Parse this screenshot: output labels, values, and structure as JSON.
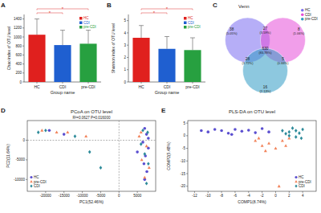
{
  "chart_data": [
    {
      "type": "bar",
      "label": "A",
      "categories": [
        "HC",
        "CDI",
        "pre-CDI"
      ],
      "values": [
        1050,
        820,
        850
      ],
      "errors": [
        350,
        330,
        300
      ],
      "colors": [
        "#e0201e",
        "#1f5fd0",
        "#27a040"
      ],
      "ylim": [
        0,
        1500
      ],
      "yticks": [
        0,
        200,
        400,
        600,
        800,
        1000,
        1200,
        1400
      ],
      "x_label": "Group name",
      "y_label": "Chao index of OTU level",
      "legend": "upper right",
      "comparisons": [
        {
          "groups": [
            "HC",
            "CDI"
          ],
          "label": "*"
        },
        {
          "groups": [
            "HC",
            "pre-CDI"
          ],
          "label": "*"
        }
      ]
    },
    {
      "type": "bar",
      "label": "B",
      "categories": [
        "HC",
        "CDI",
        "pre-CDI"
      ],
      "values": [
        3.6,
        2.7,
        2.6
      ],
      "errors": [
        1.0,
        1.0,
        1.0
      ],
      "colors": [
        "#e0201e",
        "#1f5fd0",
        "#27a040"
      ],
      "ylim": [
        0,
        5.5
      ],
      "yticks": [
        0,
        1,
        2,
        3,
        4,
        5
      ],
      "x_label": "Group name",
      "y_label": "Shannon index of OTU level",
      "legend": "upper right",
      "comparisons": [
        {
          "groups": [
            "HC",
            "CDI"
          ],
          "label": "*"
        },
        {
          "groups": [
            "HC",
            "pre-CDI"
          ],
          "label": "*"
        }
      ]
    },
    {
      "type": "venn",
      "label": "C",
      "title": "Venn",
      "legend": "upper right",
      "sets": [
        {
          "name": "HC",
          "color": "#7a6cf0"
        },
        {
          "name": "CDI",
          "color": "#e64fd8"
        },
        {
          "name": "pre-CDI",
          "color": "#2f9ac4"
        }
      ],
      "regions": [
        {
          "sets": [
            "HC"
          ],
          "value": 38,
          "percent_label": "(5.05%)"
        },
        {
          "sets": [
            "CDI"
          ],
          "value": 8,
          "percent_label": "(1.06%)"
        },
        {
          "sets": [
            "pre-CDI"
          ],
          "value": 16,
          "percent_label": "(2.13%)"
        },
        {
          "sets": [
            "HC",
            "CDI"
          ],
          "value": 27,
          "percent_label": "(3.59%)"
        },
        {
          "sets": [
            "HC",
            "pre-CDI"
          ],
          "value": 28,
          "percent_label": "(3.72%)"
        },
        {
          "sets": [
            "CDI",
            "pre-CDI"
          ],
          "value": 5,
          "percent_label": "(0.66%)"
        },
        {
          "sets": [
            "HC",
            "CDI",
            "pre-CDI"
          ],
          "value": 630,
          "percent_label": "(83.78%)"
        }
      ]
    },
    {
      "type": "scatter",
      "label": "D",
      "title": "PCoA on OTU level",
      "subtitle": "R²=0.0627 P=0.016000",
      "x_label": "PC1(52.46%)",
      "y_label": "PC2(11.64%)",
      "xlim": [
        -25000,
        10000
      ],
      "ylim": [
        -13000,
        5000
      ],
      "xticks": [
        -20000,
        -15000,
        -10000,
        -5000,
        0,
        5000
      ],
      "yticks": [
        -10000,
        -5000,
        0
      ],
      "reference_x": 0,
      "reference_y": 0,
      "legend": "lower left",
      "series": [
        {
          "name": "HC",
          "color": "#5b4fd0",
          "marker": "circle",
          "x": [
            7000,
            7500,
            6500,
            8000,
            7200,
            6800,
            7600,
            7000,
            -19000,
            -15000,
            5000,
            8000
          ],
          "values": [
            3000,
            1500,
            -500,
            -2000,
            -4000,
            -6000,
            -8000,
            -10000,
            2500,
            1500,
            -3000,
            500
          ]
        },
        {
          "name": "pre-CDI",
          "color": "#f2845c",
          "marker": "triangle",
          "x": [
            -21000,
            -17000,
            -14000,
            -9000,
            6000,
            7500,
            6200,
            8200,
            7000,
            5500
          ],
          "values": [
            2500,
            2000,
            2000,
            1000,
            2000,
            -1500,
            -5000,
            -7000,
            -9500,
            1000
          ]
        },
        {
          "name": "CDI",
          "color": "#2e8b9a",
          "marker": "diamond",
          "x": [
            -22000,
            -20000,
            -12000,
            -8000,
            -5000,
            6500,
            7800,
            7000,
            8000,
            6000,
            7500
          ],
          "values": [
            2000,
            2500,
            1000,
            -3000,
            -7000,
            2500,
            2000,
            -3500,
            -6000,
            -1000,
            -11000
          ]
        }
      ]
    },
    {
      "type": "scatter",
      "label": "E",
      "title": "PLS-DA on OTU level",
      "x_label": "COMP1(8.74%)",
      "y_label": "COMP2(5.48%)",
      "xlim": [
        -13,
        6
      ],
      "ylim": [
        -22,
        6
      ],
      "xticks": [
        -12,
        -10,
        -8,
        -6,
        -4,
        -2,
        0,
        2,
        4
      ],
      "yticks": [
        -20,
        -15,
        -10,
        -5,
        0,
        5
      ],
      "legend": "lower right",
      "series": [
        {
          "name": "HC",
          "color": "#5b4fd0",
          "marker": "circle",
          "x": [
            -11,
            -10,
            -9,
            -8,
            -7,
            -6,
            -5,
            -4,
            -3,
            -2,
            -1,
            -6.5
          ],
          "values": [
            2,
            1.5,
            2.5,
            2,
            1,
            2.5,
            1.8,
            2.2,
            1.2,
            2.8,
            1.5,
            0.5
          ]
        },
        {
          "name": "pre-CDI",
          "color": "#f2845c",
          "marker": "triangle",
          "x": [
            -3,
            -2,
            -1,
            0,
            1,
            -1.5,
            2,
            0.5,
            -2.5,
            1.5
          ],
          "values": [
            -2,
            -4,
            -3,
            -5,
            -2,
            -6,
            -1,
            -20,
            -1,
            -4
          ]
        },
        {
          "name": "CDI",
          "color": "#2e8b9a",
          "marker": "diamond",
          "x": [
            1,
            2,
            2.5,
            3,
            3.5,
            4,
            2,
            3,
            1.5,
            3.8
          ],
          "values": [
            2,
            1.5,
            3,
            2,
            1,
            2.5,
            0,
            -0.5,
            0.8,
            -1
          ]
        }
      ]
    }
  ]
}
